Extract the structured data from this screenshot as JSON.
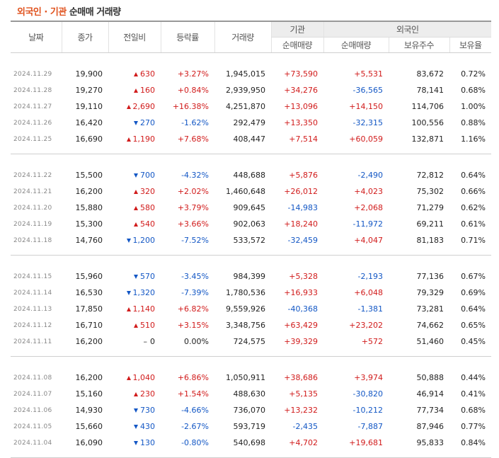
{
  "title": {
    "accent": "외국인 · 기관",
    "rest": "순매매 거래량"
  },
  "headers": {
    "date": "날짜",
    "close": "종가",
    "change": "전일비",
    "rate": "등락률",
    "volume": "거래량",
    "inst_group": "기관",
    "foreign_group": "외국인",
    "inst_net": "순매매량",
    "foreign_net": "순매매량",
    "foreign_holdings": "보유주수",
    "foreign_ratio": "보유율"
  },
  "groups": [
    [
      {
        "date": "2024.11.29",
        "close": "19,900",
        "dir": "up",
        "change": "630",
        "rate": "+3.27%",
        "volume": "1,945,015",
        "inst": "+73,590",
        "foreign": "+5,531",
        "holdings": "83,672",
        "ratio": "0.72%"
      },
      {
        "date": "2024.11.28",
        "close": "19,270",
        "dir": "up",
        "change": "160",
        "rate": "+0.84%",
        "volume": "2,939,950",
        "inst": "+34,276",
        "foreign": "-36,565",
        "holdings": "78,141",
        "ratio": "0.68%"
      },
      {
        "date": "2024.11.27",
        "close": "19,110",
        "dir": "up",
        "change": "2,690",
        "rate": "+16.38%",
        "volume": "4,251,870",
        "inst": "+13,096",
        "foreign": "+14,150",
        "holdings": "114,706",
        "ratio": "1.00%"
      },
      {
        "date": "2024.11.26",
        "close": "16,420",
        "dir": "down",
        "change": "270",
        "rate": "-1.62%",
        "volume": "292,479",
        "inst": "+13,350",
        "foreign": "-32,315",
        "holdings": "100,556",
        "ratio": "0.88%"
      },
      {
        "date": "2024.11.25",
        "close": "16,690",
        "dir": "up",
        "change": "1,190",
        "rate": "+7.68%",
        "volume": "408,447",
        "inst": "+7,514",
        "foreign": "+60,059",
        "holdings": "132,871",
        "ratio": "1.16%"
      }
    ],
    [
      {
        "date": "2024.11.22",
        "close": "15,500",
        "dir": "down",
        "change": "700",
        "rate": "-4.32%",
        "volume": "448,688",
        "inst": "+5,876",
        "foreign": "-2,490",
        "holdings": "72,812",
        "ratio": "0.64%"
      },
      {
        "date": "2024.11.21",
        "close": "16,200",
        "dir": "up",
        "change": "320",
        "rate": "+2.02%",
        "volume": "1,460,648",
        "inst": "+26,012",
        "foreign": "+4,023",
        "holdings": "75,302",
        "ratio": "0.66%"
      },
      {
        "date": "2024.11.20",
        "close": "15,880",
        "dir": "up",
        "change": "580",
        "rate": "+3.79%",
        "volume": "909,645",
        "inst": "-14,983",
        "foreign": "+2,068",
        "holdings": "71,279",
        "ratio": "0.62%"
      },
      {
        "date": "2024.11.19",
        "close": "15,300",
        "dir": "up",
        "change": "540",
        "rate": "+3.66%",
        "volume": "902,063",
        "inst": "+18,240",
        "foreign": "-11,972",
        "holdings": "69,211",
        "ratio": "0.61%"
      },
      {
        "date": "2024.11.18",
        "close": "14,760",
        "dir": "down",
        "change": "1,200",
        "rate": "-7.52%",
        "volume": "533,572",
        "inst": "-32,459",
        "foreign": "+4,047",
        "holdings": "81,183",
        "ratio": "0.71%"
      }
    ],
    [
      {
        "date": "2024.11.15",
        "close": "15,960",
        "dir": "down",
        "change": "570",
        "rate": "-3.45%",
        "volume": "984,399",
        "inst": "+5,328",
        "foreign": "-2,193",
        "holdings": "77,136",
        "ratio": "0.67%"
      },
      {
        "date": "2024.11.14",
        "close": "16,530",
        "dir": "down",
        "change": "1,320",
        "rate": "-7.39%",
        "volume": "1,780,536",
        "inst": "+16,933",
        "foreign": "+6,048",
        "holdings": "79,329",
        "ratio": "0.69%"
      },
      {
        "date": "2024.11.13",
        "close": "17,850",
        "dir": "up",
        "change": "1,140",
        "rate": "+6.82%",
        "volume": "9,559,926",
        "inst": "-40,368",
        "foreign": "-1,381",
        "holdings": "73,281",
        "ratio": "0.64%"
      },
      {
        "date": "2024.11.12",
        "close": "16,710",
        "dir": "up",
        "change": "510",
        "rate": "+3.15%",
        "volume": "3,348,756",
        "inst": "+63,429",
        "foreign": "+23,202",
        "holdings": "74,662",
        "ratio": "0.65%"
      },
      {
        "date": "2024.11.11",
        "close": "16,200",
        "dir": "flat",
        "change": "0",
        "rate": "0.00%",
        "volume": "724,575",
        "inst": "+39,329",
        "foreign": "+572",
        "holdings": "51,460",
        "ratio": "0.45%"
      }
    ],
    [
      {
        "date": "2024.11.08",
        "close": "16,200",
        "dir": "up",
        "change": "1,040",
        "rate": "+6.86%",
        "volume": "1,050,911",
        "inst": "+38,686",
        "foreign": "+3,974",
        "holdings": "50,888",
        "ratio": "0.44%"
      },
      {
        "date": "2024.11.07",
        "close": "15,160",
        "dir": "up",
        "change": "230",
        "rate": "+1.54%",
        "volume": "488,630",
        "inst": "+5,135",
        "foreign": "-30,820",
        "holdings": "46,914",
        "ratio": "0.41%"
      },
      {
        "date": "2024.11.06",
        "close": "14,930",
        "dir": "down",
        "change": "730",
        "rate": "-4.66%",
        "volume": "736,070",
        "inst": "+13,232",
        "foreign": "-10,212",
        "holdings": "77,734",
        "ratio": "0.68%"
      },
      {
        "date": "2024.11.05",
        "close": "15,660",
        "dir": "down",
        "change": "430",
        "rate": "-2.67%",
        "volume": "593,719",
        "inst": "-2,435",
        "foreign": "-7,887",
        "holdings": "87,946",
        "ratio": "0.77%"
      },
      {
        "date": "2024.11.04",
        "close": "16,090",
        "dir": "down",
        "change": "130",
        "rate": "-0.80%",
        "volume": "540,698",
        "inst": "+4,702",
        "foreign": "+19,681",
        "holdings": "95,833",
        "ratio": "0.84%"
      }
    ]
  ],
  "colors": {
    "up": "#d11b1b",
    "down": "#1357c5",
    "accent": "#e0531f"
  },
  "icons": {
    "up": "up-triangle-icon",
    "down": "down-triangle-icon",
    "flat": "dash-icon"
  }
}
